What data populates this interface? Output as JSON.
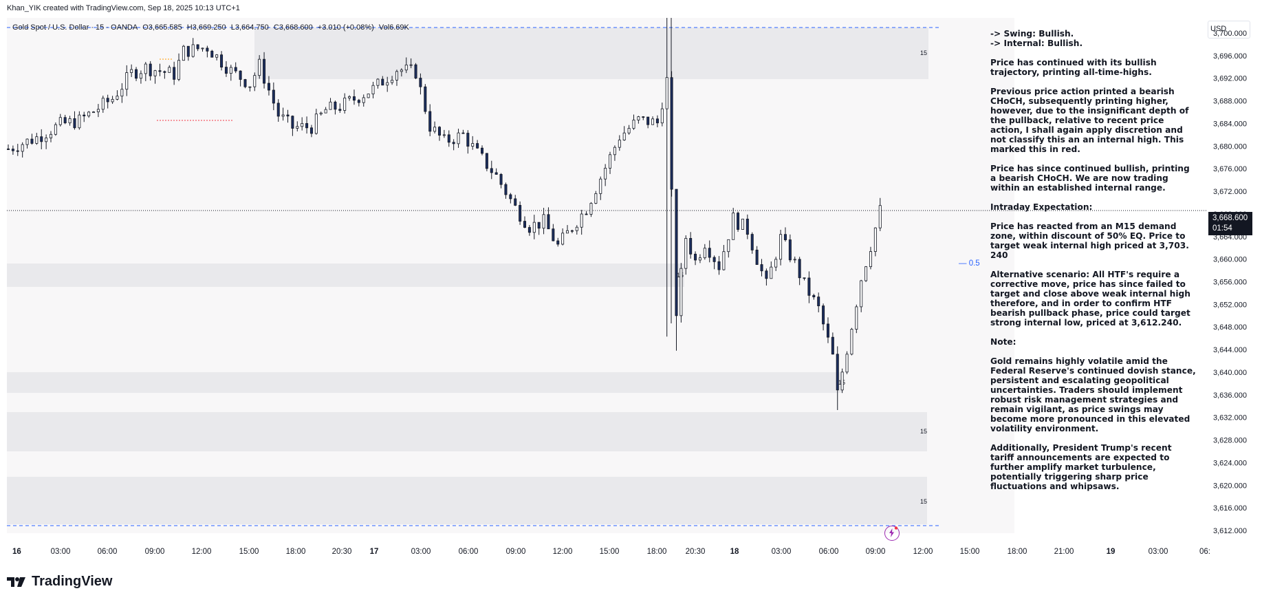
{
  "header": {
    "creator": "Khan_YIK created with TradingView.com, Sep 18, 2025 10:13 UTC+1"
  },
  "symbol": {
    "name": "Gold Spot / U.S. Dollar · 15 · OANDA",
    "open": "O3,665.585",
    "high": "H3,669.250",
    "low": "L3,664.750",
    "close": "C3,668.600",
    "change": "+3.010 (+0.08%)",
    "volume": "Vol6.69K"
  },
  "currency": "USD",
  "last_price": {
    "value": "3,668.600",
    "countdown": "01:54"
  },
  "eq_label": "— 0.5",
  "footer": {
    "logo_text": "TradingView"
  },
  "notes": {
    "swing": "-> Swing: Bullish.",
    "internal": "-> Internal: Bullish.",
    "p1": "Price has continued with its bullish trajectory, printing all-time-highs.",
    "p2": "Previous price action printed a bearish CHoCH, subsequently printing higher, however, due to the insignificant depth of the pullback, relative to recent price action, I shall again apply discretion and not classify this an an internal high.  This marked this in red.",
    "p3": "Price has since continued bullish, printing a bearish CHoCH.  We are now trading within an established internal range.",
    "p4": "Intraday Expectation:",
    "p5": "Price has reacted from an M15 demand zone, within discount of 50% EQ.  Price to target weak internal high priced at 3,703. 240",
    "p6": "Alternative scenario: All HTF's require a corrective move, price has since failed to target and close above weak internal high therefore, and in order to confirm HTF bearish pullback phase, price could target strong internal low, priced at 3,612.240.",
    "p7": "Note:",
    "p8": "Gold remains highly volatile amid the Federal Reserve's continued dovish stance, persistent and escalating geopolitical uncertainties. Traders should implement robust risk management strategies and remain vigilant, as price swings may become more pronounced in this elevated volatility environment.",
    "p9": "Additionally, President Trump's recent tariff announcements are expected to further amplify market turbulence, potentially triggering sharp price fluctuations and whipsaws."
  },
  "chart_data": {
    "type": "candlestick",
    "y_range": [
      3610,
      3702
    ],
    "y_ticks": [
      "3,700.000",
      "3,696.000",
      "3,692.000",
      "3,688.000",
      "3,684.000",
      "3,680.000",
      "3,676.000",
      "3,672.000",
      "3,668.000",
      "3,664.000",
      "3,660.000",
      "3,656.000",
      "3,652.000",
      "3,648.000",
      "3,644.000",
      "3,640.000",
      "3,636.000",
      "3,632.000",
      "3,628.000",
      "3,624.000",
      "3,620.000",
      "3,616.000",
      "3,612.000"
    ],
    "x_ticks": [
      {
        "label": "16",
        "bold": true
      },
      {
        "label": "03:00"
      },
      {
        "label": "06:00"
      },
      {
        "label": "09:00"
      },
      {
        "label": "12:00"
      },
      {
        "label": "15:00"
      },
      {
        "label": "18:00"
      },
      {
        "label": "20:30"
      },
      {
        "label": "17",
        "bold": true
      },
      {
        "label": "03:00"
      },
      {
        "label": "06:00"
      },
      {
        "label": "09:00"
      },
      {
        "label": "12:00"
      },
      {
        "label": "15:00"
      },
      {
        "label": "18:00"
      },
      {
        "label": "20:30"
      },
      {
        "label": "18",
        "bold": true
      },
      {
        "label": "03:00"
      },
      {
        "label": "06:00"
      },
      {
        "label": "09:00"
      },
      {
        "label": "12:00"
      },
      {
        "label": "15:00"
      },
      {
        "label": "18:00"
      },
      {
        "label": "21:00"
      },
      {
        "label": "19",
        "bold": true
      },
      {
        "label": "03:00"
      },
      {
        "label": "06:"
      }
    ],
    "zone_labels": [
      "15",
      "15",
      "15",
      "15",
      "15"
    ],
    "price_path": [
      [
        0,
        3679.5
      ],
      [
        6,
        3681.5
      ],
      [
        11,
        3683.8
      ],
      [
        15,
        3684.5
      ],
      [
        22,
        3688.4
      ],
      [
        26,
        3692.9
      ],
      [
        29,
        3693.9
      ],
      [
        35,
        3692.7
      ],
      [
        37,
        3696.8
      ],
      [
        42,
        3697.5
      ],
      [
        47,
        3693.3
      ],
      [
        51,
        3691.0
      ],
      [
        53,
        3694.3
      ],
      [
        57,
        3685.5
      ],
      [
        60,
        3683.3
      ],
      [
        64,
        3683.4
      ],
      [
        67,
        3686.4
      ],
      [
        70,
        3687.0
      ],
      [
        77,
        3690.1
      ],
      [
        82,
        3693.6
      ],
      [
        86,
        3693.1
      ],
      [
        89,
        3683.5
      ],
      [
        92,
        3680.8
      ],
      [
        96,
        3682.0
      ],
      [
        99,
        3678.7
      ],
      [
        103,
        3674.7
      ],
      [
        107,
        3669.1
      ],
      [
        110,
        3665.8
      ],
      [
        113,
        3666.6
      ],
      [
        116,
        3662.3
      ],
      [
        119,
        3665.7
      ],
      [
        122,
        3669.0
      ],
      [
        126,
        3676.2
      ],
      [
        129,
        3681.7
      ],
      [
        133,
        3684.6
      ],
      [
        137,
        3684.1
      ],
      [
        139,
        3691.6
      ],
      [
        141,
        3650.7
      ],
      [
        143,
        3663.9
      ],
      [
        145,
        3659.6
      ],
      [
        147,
        3663.0
      ],
      [
        150,
        3658.8
      ],
      [
        153,
        3667.2
      ],
      [
        156,
        3665.1
      ],
      [
        158,
        3660.1
      ],
      [
        160,
        3655.4
      ],
      [
        163,
        3663.7
      ],
      [
        166,
        3659.2
      ],
      [
        168,
        3655.5
      ],
      [
        171,
        3651.2
      ],
      [
        174,
        3642.7
      ],
      [
        175,
        3636.1
      ],
      [
        177,
        3644.1
      ],
      [
        180,
        3656.6
      ],
      [
        182,
        3662.4
      ],
      [
        184,
        3668.6
      ]
    ]
  }
}
